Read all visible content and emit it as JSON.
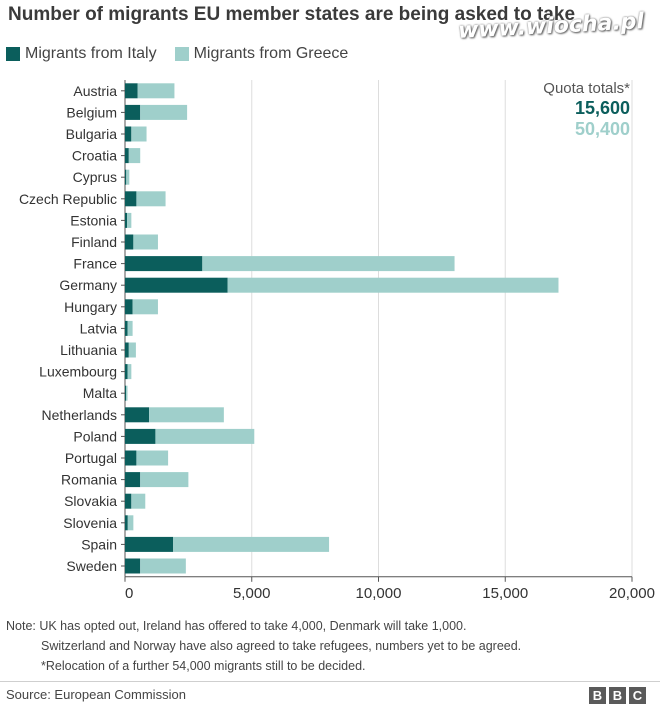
{
  "title": "Number of migrants EU member states are being asked to take",
  "watermark": "www.wiocha.pl",
  "colors": {
    "italy": "#0b5e5c",
    "greece": "#9fcfcb",
    "grid": "#dddddd",
    "axis": "#555555"
  },
  "quota": {
    "label": "Quota totals*",
    "italy_total": "15,600",
    "greece_total": "50,400"
  },
  "chart_data": {
    "type": "bar",
    "orientation": "horizontal",
    "stacked": true,
    "title": "Number of migrants EU member states are being asked to take",
    "categories": [
      "Austria",
      "Belgium",
      "Bulgaria",
      "Croatia",
      "Cyprus",
      "Czech Republic",
      "Estonia",
      "Finland",
      "France",
      "Germany",
      "Hungary",
      "Latvia",
      "Lithuania",
      "Luxembourg",
      "Malta",
      "Netherlands",
      "Poland",
      "Portugal",
      "Romania",
      "Slovakia",
      "Slovenia",
      "Spain",
      "Sweden"
    ],
    "series": [
      {
        "name": "Migrants from Italy",
        "values": [
          500,
          600,
          250,
          150,
          50,
          450,
          80,
          330,
          3050,
          4050,
          300,
          100,
          150,
          100,
          40,
          950,
          1200,
          450,
          600,
          250,
          110,
          1900,
          600
        ]
      },
      {
        "name": "Migrants from Greece",
        "values": [
          1450,
          1850,
          600,
          450,
          120,
          1150,
          170,
          970,
          9950,
          13050,
          1000,
          200,
          280,
          150,
          60,
          2950,
          3900,
          1250,
          1900,
          550,
          220,
          6150,
          1800
        ]
      }
    ],
    "xlim": [
      0,
      20000
    ],
    "xticks": [
      0,
      5000,
      10000,
      15000,
      20000
    ],
    "xtick_labels": [
      "0",
      "5,000",
      "10,000",
      "15,000",
      "20,000"
    ],
    "grid": "vertical",
    "legend": "top-left"
  },
  "notes": [
    "Note: UK has opted out, Ireland has offered to take 4,000, Denmark will take 1,000.",
    "Switzerland and Norway have also agreed to take refugees, numbers yet to be agreed.",
    "*Relocation of a further 54,000 migrants still to be decided."
  ],
  "source": "Source: European Commission",
  "logo": [
    "B",
    "B",
    "C"
  ]
}
